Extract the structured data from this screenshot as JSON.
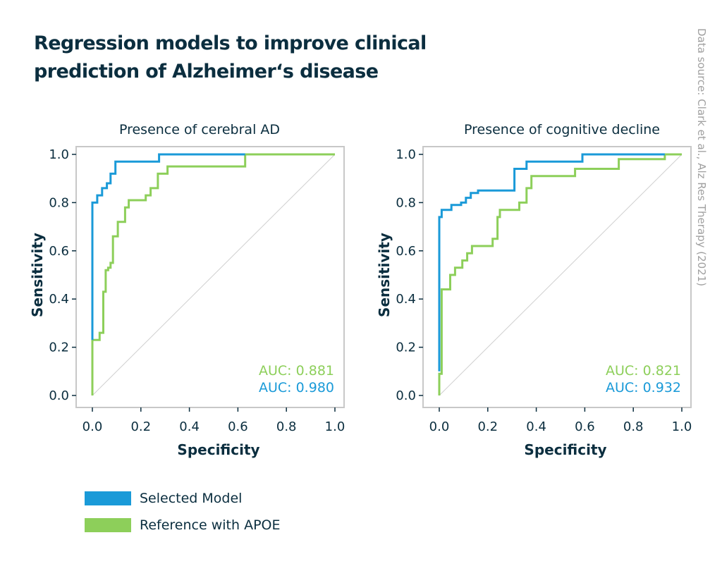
{
  "title": "Regression models to improve clinical prediction of Alzheimer‘s disease",
  "source": "Data source: Clark et al., Alz Res Therapy (2021)",
  "colors": {
    "selected": "#1a9ad8",
    "reference": "#8dcf5a",
    "text": "#0b2e3f",
    "frame": "#c8c8c8",
    "diagonal": "#cfcfcf"
  },
  "legend": [
    {
      "label": "Selected Model",
      "color": "#1a9ad8"
    },
    {
      "label": "Reference with APOE",
      "color": "#8dcf5a"
    }
  ],
  "chart_data": [
    {
      "type": "line",
      "title": "Presence of cerebral AD",
      "xlabel": "Specificity",
      "ylabel": "Sensitivity",
      "xlim": [
        0,
        1
      ],
      "ylim": [
        0,
        1
      ],
      "xticks": [
        "0.0",
        "0.2",
        "0.4",
        "0.6",
        "0.8",
        "1.0"
      ],
      "yticks": [
        "0.0",
        "0.2",
        "0.4",
        "0.6",
        "0.8",
        "1.0"
      ],
      "annotations": [
        "AUC: 0.881",
        "AUC: 0.980"
      ],
      "series": [
        {
          "name": "Reference with APOE",
          "color": "#8dcf5a",
          "points": [
            [
              0,
              0
            ],
            [
              0,
              0.23
            ],
            [
              0.03,
              0.23
            ],
            [
              0.03,
              0.26
            ],
            [
              0.045,
              0.26
            ],
            [
              0.045,
              0.43
            ],
            [
              0.055,
              0.43
            ],
            [
              0.055,
              0.52
            ],
            [
              0.065,
              0.52
            ],
            [
              0.065,
              0.53
            ],
            [
              0.075,
              0.53
            ],
            [
              0.075,
              0.55
            ],
            [
              0.085,
              0.55
            ],
            [
              0.085,
              0.66
            ],
            [
              0.105,
              0.66
            ],
            [
              0.105,
              0.72
            ],
            [
              0.135,
              0.72
            ],
            [
              0.135,
              0.78
            ],
            [
              0.15,
              0.78
            ],
            [
              0.15,
              0.81
            ],
            [
              0.22,
              0.81
            ],
            [
              0.22,
              0.83
            ],
            [
              0.24,
              0.83
            ],
            [
              0.24,
              0.86
            ],
            [
              0.27,
              0.86
            ],
            [
              0.27,
              0.92
            ],
            [
              0.31,
              0.92
            ],
            [
              0.31,
              0.95
            ],
            [
              0.63,
              0.95
            ],
            [
              0.63,
              1.0
            ],
            [
              1.0,
              1.0
            ]
          ]
        },
        {
          "name": "Selected Model",
          "color": "#1a9ad8",
          "points": [
            [
              0,
              0.23
            ],
            [
              0,
              0.8
            ],
            [
              0.02,
              0.8
            ],
            [
              0.02,
              0.83
            ],
            [
              0.04,
              0.83
            ],
            [
              0.04,
              0.86
            ],
            [
              0.06,
              0.86
            ],
            [
              0.06,
              0.88
            ],
            [
              0.075,
              0.88
            ],
            [
              0.075,
              0.92
            ],
            [
              0.095,
              0.92
            ],
            [
              0.095,
              0.97
            ],
            [
              0.275,
              0.97
            ],
            [
              0.275,
              1.0
            ],
            [
              0.63,
              1.0
            ]
          ]
        }
      ]
    },
    {
      "type": "line",
      "title": "Presence of cognitive decline",
      "xlabel": "Specificity",
      "ylabel": "Sensitivity",
      "xlim": [
        0,
        1
      ],
      "ylim": [
        0,
        1
      ],
      "xticks": [
        "0.0",
        "0.2",
        "0.4",
        "0.6",
        "0.8",
        "1.0"
      ],
      "yticks": [
        "0.0",
        "0.2",
        "0.4",
        "0.6",
        "0.8",
        "1.0"
      ],
      "annotations": [
        "AUC: 0.821",
        "AUC: 0.932"
      ],
      "series": [
        {
          "name": "Reference with APOE",
          "color": "#8dcf5a",
          "points": [
            [
              0,
              0
            ],
            [
              0,
              0.09
            ],
            [
              0.01,
              0.09
            ],
            [
              0.01,
              0.44
            ],
            [
              0.045,
              0.44
            ],
            [
              0.045,
              0.5
            ],
            [
              0.065,
              0.5
            ],
            [
              0.065,
              0.53
            ],
            [
              0.095,
              0.53
            ],
            [
              0.095,
              0.56
            ],
            [
              0.115,
              0.56
            ],
            [
              0.115,
              0.59
            ],
            [
              0.135,
              0.59
            ],
            [
              0.135,
              0.62
            ],
            [
              0.22,
              0.62
            ],
            [
              0.22,
              0.65
            ],
            [
              0.24,
              0.65
            ],
            [
              0.24,
              0.74
            ],
            [
              0.25,
              0.74
            ],
            [
              0.25,
              0.77
            ],
            [
              0.33,
              0.77
            ],
            [
              0.33,
              0.8
            ],
            [
              0.36,
              0.8
            ],
            [
              0.36,
              0.86
            ],
            [
              0.38,
              0.86
            ],
            [
              0.38,
              0.91
            ],
            [
              0.56,
              0.91
            ],
            [
              0.56,
              0.94
            ],
            [
              0.74,
              0.94
            ],
            [
              0.74,
              0.98
            ],
            [
              0.93,
              0.98
            ],
            [
              0.93,
              1.0
            ],
            [
              1.0,
              1.0
            ]
          ]
        },
        {
          "name": "Selected Model",
          "color": "#1a9ad8",
          "points": [
            [
              0,
              0.1
            ],
            [
              0,
              0.74
            ],
            [
              0.01,
              0.74
            ],
            [
              0.01,
              0.77
            ],
            [
              0.05,
              0.77
            ],
            [
              0.05,
              0.79
            ],
            [
              0.09,
              0.79
            ],
            [
              0.09,
              0.8
            ],
            [
              0.11,
              0.8
            ],
            [
              0.11,
              0.82
            ],
            [
              0.13,
              0.82
            ],
            [
              0.13,
              0.84
            ],
            [
              0.16,
              0.84
            ],
            [
              0.16,
              0.85
            ],
            [
              0.31,
              0.85
            ],
            [
              0.31,
              0.94
            ],
            [
              0.36,
              0.94
            ],
            [
              0.36,
              0.97
            ],
            [
              0.59,
              0.97
            ],
            [
              0.59,
              1.0
            ],
            [
              0.93,
              1.0
            ]
          ]
        }
      ]
    }
  ]
}
